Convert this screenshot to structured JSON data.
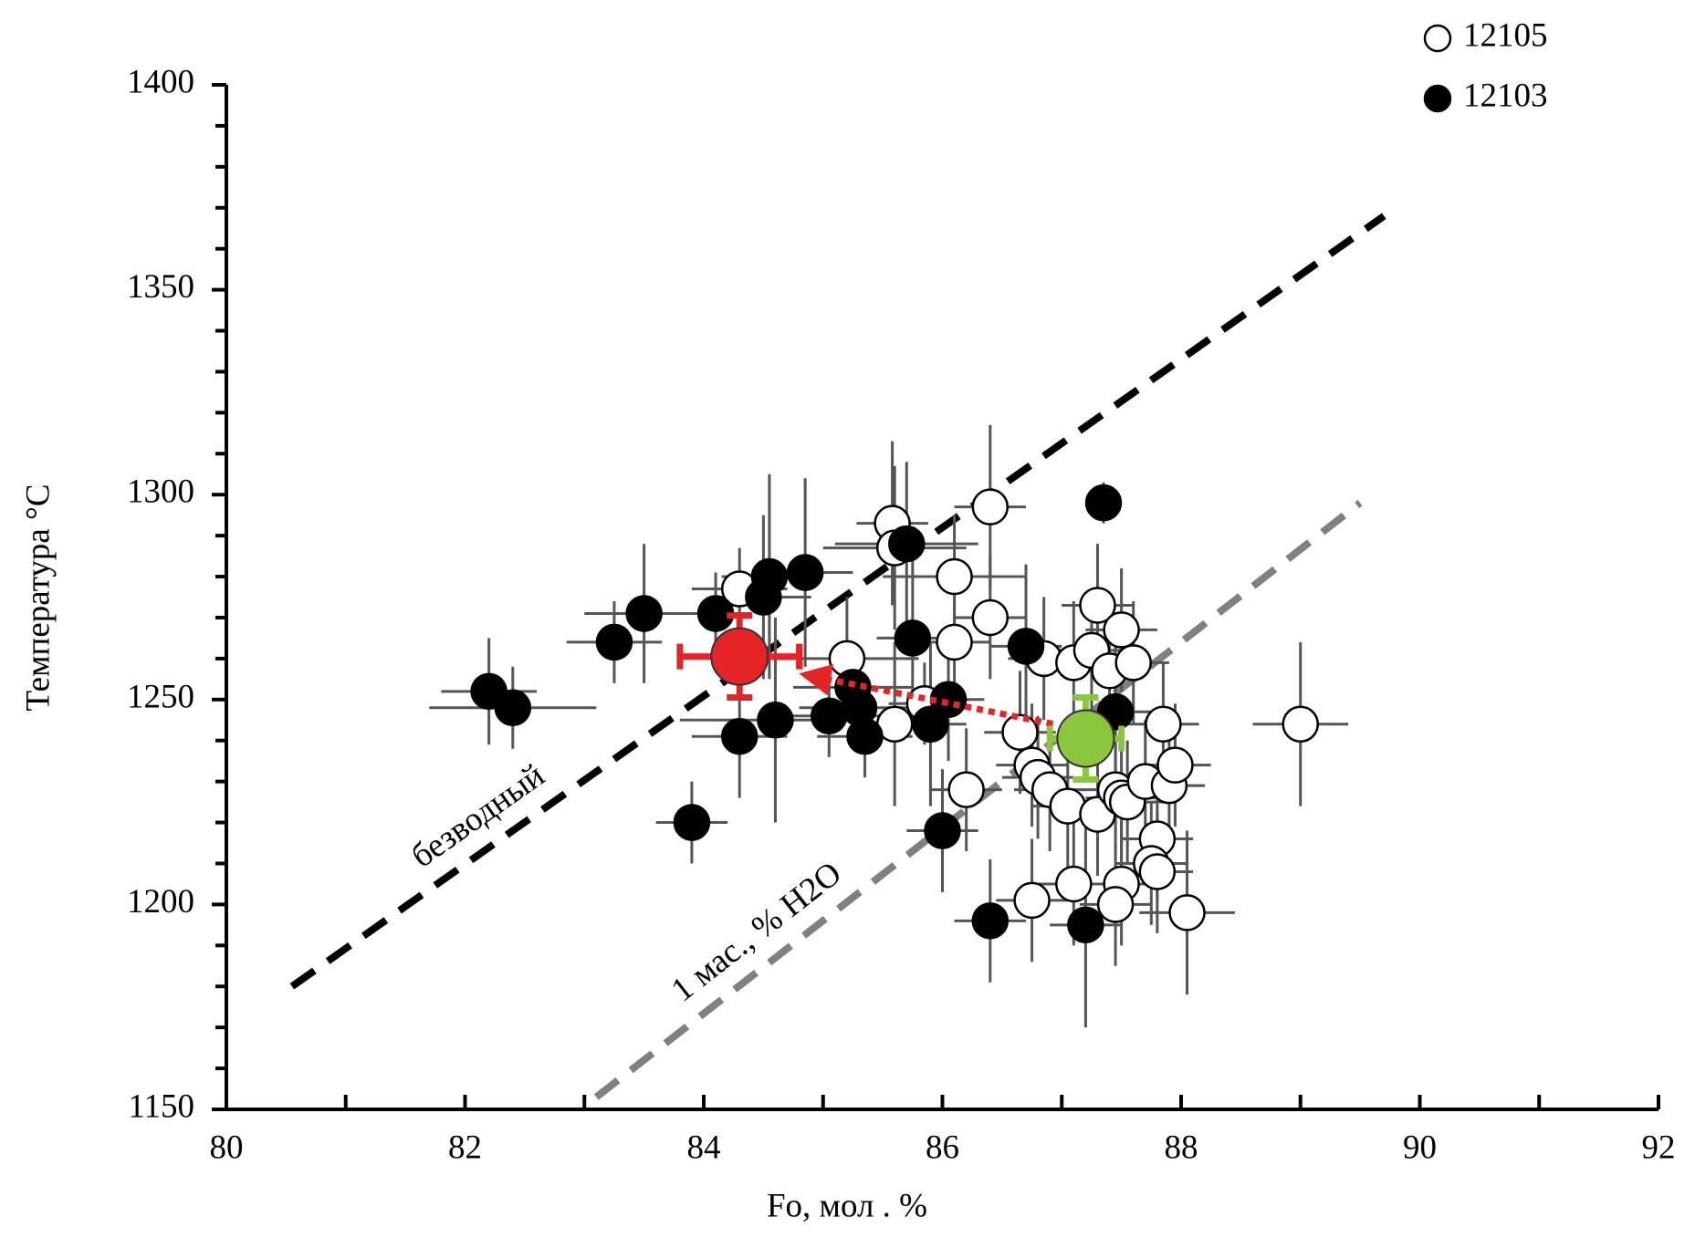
{
  "chart_data": {
    "type": "scatter",
    "xlabel": "Fo, мол . %",
    "ylabel": "Температура °C",
    "xlim": [
      80,
      92
    ],
    "xticks": [
      80,
      82,
      84,
      86,
      88,
      90,
      92
    ],
    "xminorticks": [
      81,
      83,
      85,
      87,
      89,
      91
    ],
    "ylim": [
      1150,
      1400
    ],
    "yticks": [
      1150,
      1200,
      1250,
      1300,
      1350,
      1400
    ],
    "yminorticks": [
      1160,
      1170,
      1180,
      1190,
      1210,
      1220,
      1230,
      1240,
      1260,
      1270,
      1280,
      1290,
      1310,
      1320,
      1330,
      1340,
      1360,
      1370,
      1380,
      1390
    ],
    "legend": "top-right",
    "series": [
      {
        "name": "12105",
        "color": "#000000",
        "fill": "#ffffff",
        "x": [
          85.58,
          85.6,
          86.4,
          86.1,
          84.3,
          85.2,
          86.1,
          86.4,
          85.6,
          85.85,
          86.2,
          86.65,
          86.75,
          86.8,
          86.9,
          86.85,
          87.1,
          87.25,
          87.3,
          87.4,
          87.5,
          87.6,
          87.05,
          87.3,
          87.45,
          87.5,
          87.55,
          87.7,
          87.85,
          87.9,
          87.95,
          87.8,
          87.75,
          87.8,
          87.5,
          87.45,
          86.75,
          87.1,
          88.05,
          89.0
        ],
        "y": [
          1293,
          1287,
          1297,
          1280,
          1277,
          1260,
          1264,
          1270,
          1244,
          1249,
          1228,
          1242,
          1234,
          1231,
          1228,
          1260,
          1259,
          1262,
          1273,
          1257,
          1267,
          1259,
          1224,
          1222,
          1228,
          1226,
          1225,
          1230,
          1244,
          1229,
          1234,
          1216,
          1210,
          1208,
          1205,
          1200,
          1201,
          1205,
          1198,
          1244
        ],
        "xerr": [
          0.3,
          0.6,
          0.3,
          0.6,
          0.4,
          0.6,
          0.3,
          0.3,
          0.3,
          0.3,
          0.3,
          0.3,
          0.3,
          0.3,
          0.3,
          0.3,
          0.3,
          0.3,
          0.3,
          0.3,
          0.3,
          0.3,
          0.3,
          0.3,
          0.3,
          0.3,
          0.3,
          0.3,
          0.3,
          0.3,
          0.3,
          0.3,
          0.3,
          0.3,
          0.3,
          0.3,
          0.3,
          0.3,
          0.4,
          0.4
        ],
        "yerr": [
          20,
          20,
          20,
          15,
          10,
          15,
          15,
          15,
          20,
          10,
          15,
          15,
          15,
          15,
          15,
          15,
          15,
          15,
          15,
          15,
          15,
          15,
          15,
          15,
          15,
          15,
          15,
          15,
          15,
          15,
          15,
          15,
          15,
          15,
          15,
          15,
          15,
          15,
          20,
          20
        ]
      },
      {
        "name": "12103",
        "color": "#000000",
        "fill": "#000000",
        "x": [
          82.2,
          82.4,
          83.25,
          83.5,
          83.9,
          84.1,
          84.3,
          84.5,
          84.55,
          84.85,
          84.6,
          85.05,
          85.25,
          85.3,
          85.35,
          85.7,
          85.75,
          85.9,
          86.05,
          86.0,
          86.4,
          86.7,
          87.2,
          87.35,
          87.45
        ],
        "y": [
          1252,
          1248,
          1264,
          1271,
          1220,
          1271,
          1241,
          1275,
          1280,
          1281,
          1245,
          1246,
          1253,
          1248,
          1241,
          1288,
          1265,
          1244,
          1250,
          1218,
          1196,
          1263,
          1195,
          1298,
          1247
        ],
        "xerr": [
          0.4,
          0.7,
          0.4,
          0.5,
          0.3,
          0.3,
          0.4,
          0.4,
          0.4,
          0.4,
          0.8,
          0.6,
          0.5,
          0.5,
          0.4,
          0.6,
          0.3,
          0.3,
          0.3,
          0.3,
          0.3,
          0.3,
          0.3,
          0.15,
          0.3
        ],
        "yerr": [
          13,
          10,
          10,
          17,
          10,
          10,
          15,
          20,
          25,
          23,
          25,
          10,
          10,
          10,
          10,
          20,
          20,
          20,
          15,
          15,
          15,
          20,
          25,
          5,
          20
        ]
      }
    ],
    "highlights": [
      {
        "x": 84.3,
        "y": 1260.5,
        "xerr": 0.5,
        "yerr": 10,
        "color": "#e52427"
      },
      {
        "x": 87.2,
        "y": 1240.5,
        "xerr": 0.3,
        "yerr": 10,
        "color": "#8cc63f"
      }
    ],
    "lines": [
      {
        "label": "безводный",
        "x": [
          80.55,
          89.7
        ],
        "y": [
          1180,
          1368
        ],
        "color": "#000000"
      },
      {
        "label": "1 мас., % H2O",
        "x": [
          83.1,
          89.5
        ],
        "y": [
          1153,
          1298
        ],
        "color": "#808080"
      }
    ]
  }
}
